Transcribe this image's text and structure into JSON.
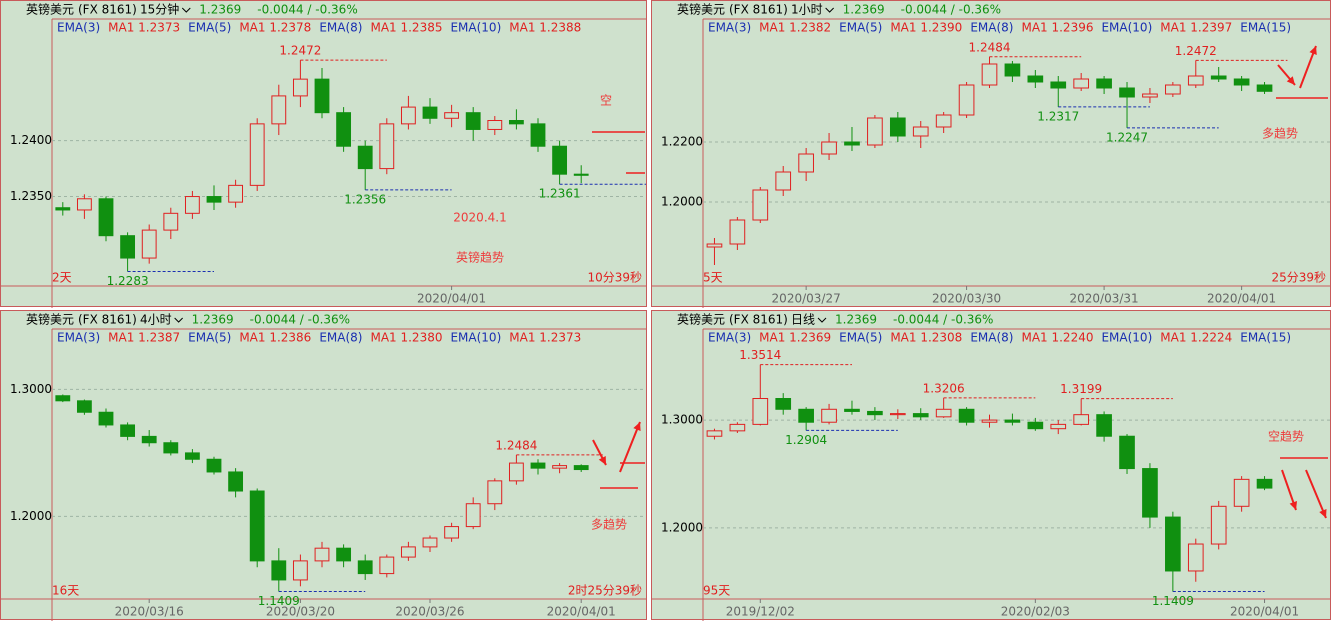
{
  "chart_data": [
    {
      "type": "candlestick",
      "title": "英镑美元",
      "code": "(FX 8161)",
      "period": "15分钟",
      "price": 1.2369,
      "change": "-0.0044 / -0.36%",
      "legend": [
        "EMA(3)",
        "MA1 1.2373",
        "EMA(5)",
        "MA1 1.2378",
        "EMA(8)",
        "MA1 1.2385",
        "EMA(10)",
        "MA1 1.2388"
      ],
      "ylim": [
        1.227,
        1.249
      ],
      "yticks": [
        {
          "value": 1.24,
          "label": "1.2400"
        },
        {
          "value": 1.235,
          "label": "1.2350"
        }
      ],
      "xticks": [
        {
          "value": 18,
          "label": "2020/04/01"
        }
      ],
      "open": [
        1.234,
        1.2338,
        1.2348,
        1.2315,
        1.2295,
        1.232,
        1.2335,
        1.235,
        1.2345,
        1.236,
        1.2415,
        1.244,
        1.2455,
        1.2425,
        1.2395,
        1.2375,
        1.2415,
        1.243,
        1.242,
        1.2425,
        1.241,
        1.2418,
        1.2415,
        1.2395,
        1.237
      ],
      "high": [
        1.2345,
        1.2352,
        1.235,
        1.2318,
        1.2325,
        1.234,
        1.2355,
        1.236,
        1.2365,
        1.242,
        1.245,
        1.2472,
        1.2465,
        1.243,
        1.24,
        1.242,
        1.244,
        1.2438,
        1.2432,
        1.243,
        1.2422,
        1.2428,
        1.242,
        1.24,
        1.2378
      ],
      "low": [
        1.2333,
        1.233,
        1.231,
        1.2283,
        1.229,
        1.2312,
        1.233,
        1.2338,
        1.234,
        1.2355,
        1.2405,
        1.243,
        1.242,
        1.239,
        1.2356,
        1.237,
        1.241,
        1.2415,
        1.2412,
        1.24,
        1.2405,
        1.241,
        1.239,
        1.2361,
        1.2362
      ],
      "close": [
        1.2338,
        1.2348,
        1.2315,
        1.2295,
        1.232,
        1.2335,
        1.235,
        1.2345,
        1.236,
        1.2415,
        1.244,
        1.2455,
        1.2425,
        1.2395,
        1.2375,
        1.2415,
        1.243,
        1.242,
        1.2425,
        1.241,
        1.2418,
        1.2415,
        1.2395,
        1.237,
        1.2369
      ],
      "up_color": "#e02020",
      "down_color": "#109010",
      "extremes": [
        1.2472,
        1.2356,
        1.2283,
        1.2361
      ],
      "corner_left": "2天",
      "corner_right": "10分39秒",
      "notes": [
        "2020.4.1",
        "英镑趋势",
        "空"
      ]
    },
    {
      "type": "candlestick",
      "title": "英镑美元",
      "code": "(FX 8161)",
      "period": "1小时",
      "price": 1.2369,
      "change": "-0.0044 / -0.36%",
      "legend": [
        "EMA(3)",
        "MA1 1.2382",
        "EMA(5)",
        "MA1 1.2390",
        "EMA(8)",
        "MA1 1.2396",
        "EMA(10)",
        "MA1 1.2397",
        "EMA(15)"
      ],
      "ylim": [
        1.172,
        1.254
      ],
      "yticks": [
        {
          "value": 1.22,
          "label": "1.2200"
        },
        {
          "value": 1.2,
          "label": "1.2000"
        }
      ],
      "xticks": [
        {
          "value": 4,
          "label": "2020/03/27"
        },
        {
          "value": 11,
          "label": "2020/03/30"
        },
        {
          "value": 17,
          "label": "2020/03/31"
        },
        {
          "value": 23,
          "label": "2020/04/01"
        }
      ],
      "open": [
        1.185,
        1.186,
        1.194,
        1.204,
        1.21,
        1.216,
        1.22,
        1.219,
        1.228,
        1.222,
        1.225,
        1.229,
        1.239,
        1.246,
        1.242,
        1.24,
        1.238,
        1.241,
        1.238,
        1.235,
        1.236,
        1.239,
        1.242,
        1.241,
        1.239
      ],
      "high": [
        1.188,
        1.195,
        1.205,
        1.212,
        1.218,
        1.223,
        1.225,
        1.229,
        1.23,
        1.227,
        1.23,
        1.24,
        1.2484,
        1.247,
        1.244,
        1.242,
        1.243,
        1.242,
        1.24,
        1.238,
        1.24,
        1.2472,
        1.245,
        1.242,
        1.24
      ],
      "low": [
        1.179,
        1.184,
        1.193,
        1.202,
        1.207,
        1.214,
        1.217,
        1.218,
        1.22,
        1.218,
        1.223,
        1.228,
        1.238,
        1.24,
        1.238,
        1.2317,
        1.237,
        1.236,
        1.2247,
        1.233,
        1.235,
        1.238,
        1.24,
        1.237,
        1.236
      ],
      "close": [
        1.186,
        1.194,
        1.204,
        1.21,
        1.216,
        1.22,
        1.219,
        1.228,
        1.222,
        1.225,
        1.229,
        1.239,
        1.246,
        1.242,
        1.24,
        1.238,
        1.241,
        1.238,
        1.235,
        1.236,
        1.239,
        1.242,
        1.241,
        1.239,
        1.2369
      ],
      "up_color": "#e02020",
      "down_color": "#109010",
      "extremes": [
        1.2484,
        1.2472,
        1.2317,
        1.2247
      ],
      "corner_left": "5天",
      "corner_right": "25分39秒",
      "notes": [
        "多趋势"
      ]
    },
    {
      "type": "candlestick",
      "title": "英镑美元",
      "code": "(FX 8161)",
      "period": "4小时",
      "price": 1.2369,
      "change": "-0.0044 / -0.36%",
      "legend": [
        "EMA(3)",
        "MA1 1.2387",
        "EMA(5)",
        "MA1 1.2386",
        "EMA(8)",
        "MA1 1.2380",
        "EMA(10)",
        "MA1 1.2373"
      ],
      "ylim": [
        1.135,
        1.331
      ],
      "yticks": [
        {
          "value": 1.3,
          "label": "1.3000"
        },
        {
          "value": 1.2,
          "label": "1.2000"
        }
      ],
      "xticks": [
        {
          "value": 4,
          "label": "2020/03/16"
        },
        {
          "value": 11,
          "label": "2020/03/20"
        },
        {
          "value": 17,
          "label": "2020/03/26"
        },
        {
          "value": 24,
          "label": "2020/04/01"
        }
      ],
      "open": [
        1.295,
        1.291,
        1.282,
        1.272,
        1.263,
        1.258,
        1.25,
        1.245,
        1.235,
        1.22,
        1.165,
        1.15,
        1.165,
        1.175,
        1.165,
        1.155,
        1.168,
        1.176,
        1.183,
        1.192,
        1.21,
        1.228,
        1.242,
        1.238,
        1.24
      ],
      "high": [
        1.296,
        1.292,
        1.285,
        1.274,
        1.268,
        1.26,
        1.253,
        1.247,
        1.238,
        1.222,
        1.175,
        1.17,
        1.18,
        1.178,
        1.17,
        1.17,
        1.18,
        1.185,
        1.195,
        1.215,
        1.23,
        1.2484,
        1.245,
        1.242,
        1.241
      ],
      "low": [
        1.29,
        1.28,
        1.27,
        1.26,
        1.255,
        1.248,
        1.242,
        1.233,
        1.215,
        1.16,
        1.1409,
        1.145,
        1.16,
        1.16,
        1.15,
        1.152,
        1.165,
        1.172,
        1.18,
        1.19,
        1.205,
        1.225,
        1.233,
        1.234,
        1.235
      ],
      "close": [
        1.291,
        1.282,
        1.272,
        1.263,
        1.258,
        1.25,
        1.245,
        1.235,
        1.22,
        1.165,
        1.15,
        1.165,
        1.175,
        1.165,
        1.155,
        1.168,
        1.176,
        1.183,
        1.192,
        1.21,
        1.228,
        1.242,
        1.238,
        1.24,
        1.2369
      ],
      "up_color": "#e02020",
      "down_color": "#109010",
      "extremes": [
        1.2484,
        1.1409
      ],
      "corner_left": "16天",
      "corner_right": "2时25分39秒",
      "notes": [
        "多趋势"
      ]
    },
    {
      "type": "candlestick",
      "title": "英镑美元",
      "code": "(FX 8161)",
      "period": "日线",
      "price": 1.2369,
      "change": "-0.0044 / -0.36%",
      "legend": [
        "EMA(3)",
        "MA1 1.2369",
        "EMA(5)",
        "MA1 1.2308",
        "EMA(8)",
        "MA1 1.2240",
        "EMA(10)",
        "MA1 1.2224",
        "EMA(15)"
      ],
      "ylim": [
        1.134,
        1.365
      ],
      "yticks": [
        {
          "value": 1.3,
          "label": "1.3000"
        },
        {
          "value": 1.2,
          "label": "1.2000"
        }
      ],
      "xticks": [
        {
          "value": 2,
          "label": "2019/12/02"
        },
        {
          "value": 14,
          "label": "2020/02/03"
        },
        {
          "value": 24,
          "label": "2020/04/01"
        }
      ],
      "open": [
        1.285,
        1.29,
        1.296,
        1.32,
        1.31,
        1.298,
        1.31,
        1.308,
        1.305,
        1.306,
        1.303,
        1.31,
        1.298,
        1.3,
        1.298,
        1.292,
        1.296,
        1.305,
        1.285,
        1.255,
        1.21,
        1.16,
        1.185,
        1.22,
        1.245
      ],
      "high": [
        1.292,
        1.298,
        1.3514,
        1.325,
        1.312,
        1.315,
        1.318,
        1.312,
        1.31,
        1.311,
        1.3206,
        1.312,
        1.305,
        1.306,
        1.302,
        1.3,
        1.3199,
        1.308,
        1.287,
        1.26,
        1.215,
        1.19,
        1.225,
        1.248,
        1.248
      ],
      "low": [
        1.282,
        1.288,
        1.295,
        1.305,
        1.2904,
        1.296,
        1.305,
        1.3,
        1.301,
        1.3,
        1.302,
        1.295,
        1.293,
        1.295,
        1.29,
        1.287,
        1.295,
        1.28,
        1.25,
        1.2,
        1.1409,
        1.15,
        1.18,
        1.215,
        1.235
      ],
      "close": [
        1.29,
        1.296,
        1.32,
        1.31,
        1.298,
        1.31,
        1.308,
        1.305,
        1.306,
        1.303,
        1.31,
        1.298,
        1.3,
        1.298,
        1.292,
        1.296,
        1.305,
        1.285,
        1.255,
        1.21,
        1.16,
        1.185,
        1.22,
        1.245,
        1.2369
      ],
      "up_color": "#e02020",
      "down_color": "#109010",
      "extremes": [
        1.3514,
        1.2904,
        1.3206,
        1.3199,
        1.1409
      ],
      "corner_left": "95天",
      "notes": [
        "空趋势"
      ]
    }
  ]
}
